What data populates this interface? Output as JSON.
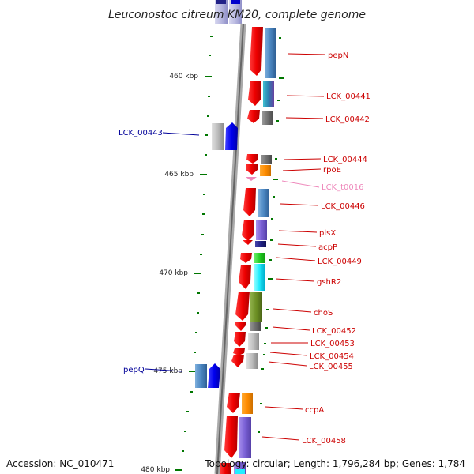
{
  "title": "Leuconostoc citreum KM20, complete genome",
  "ticks": [
    "460 kbp",
    "465 kbp",
    "470 kbp",
    "475 kbp",
    "480 kbp"
  ],
  "labels": {
    "pepN": "pepN",
    "LCK_00441": "LCK_00441",
    "LCK_00442": "LCK_00442",
    "LCK_00443": "LCK_00443",
    "LCK_00444": "LCK_00444",
    "rpoE": "rpoE",
    "LCK_t0016": "LCK_t0016",
    "LCK_00446": "LCK_00446",
    "plsX": "plsX",
    "acpP": "acpP",
    "LCK_00449": "LCK_00449",
    "gshR2": "gshR2",
    "choS": "choS",
    "LCK_00452": "LCK_00452",
    "LCK_00453": "LCK_00453",
    "LCK_00454": "LCK_00454",
    "LCK_00455": "LCK_00455",
    "pepQ": "pepQ",
    "ccpA": "ccpA",
    "LCK_00458": "LCK_00458"
  },
  "footer": {
    "accession": "Accession: NC_010471",
    "topology": "Topology: circular; Length: 1,796,284 bp; Genes: 1,784"
  },
  "colors": {
    "forward_label": "#cc0000",
    "reverse_label": "#000099",
    "rna_label": "#ee88bb",
    "backbone": "#888888",
    "tick": "#007700"
  }
}
